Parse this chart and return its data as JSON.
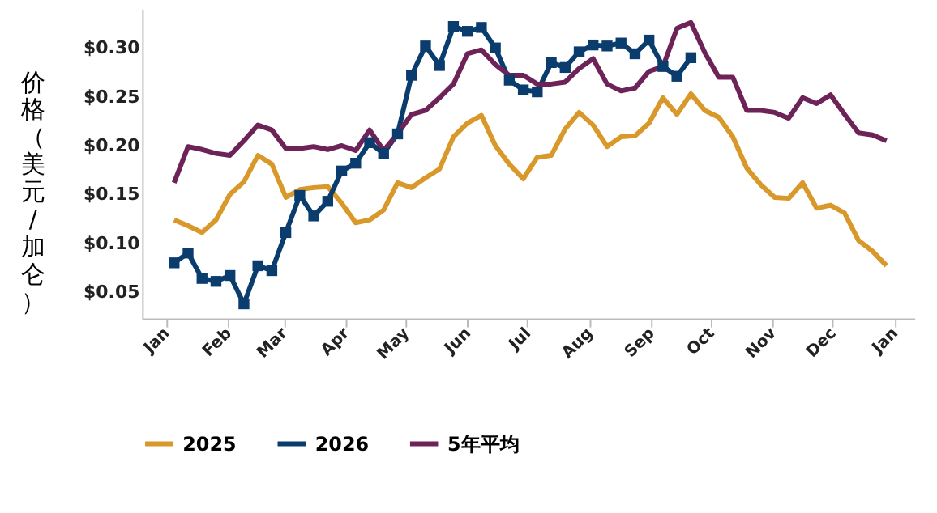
{
  "chart_data": {
    "type": "line",
    "ylabel": "价格（美元/加仑）",
    "legend": "bottom",
    "grid": false,
    "x": [
      "2026-01-05",
      "2026-01-12",
      "2026-01-19",
      "2026-01-26",
      "2026-02-02",
      "2026-02-09",
      "2026-02-16",
      "2026-02-23",
      "2026-03-02",
      "2026-03-09",
      "2026-03-16",
      "2026-03-23",
      "2026-03-30",
      "2026-04-06",
      "2026-04-13",
      "2026-04-20",
      "2026-04-27",
      "2026-05-04",
      "2026-05-11",
      "2026-05-18",
      "2026-05-25",
      "2026-06-01",
      "2026-06-08",
      "2026-06-15",
      "2026-06-22",
      "2026-06-29",
      "2026-07-06",
      "2026-07-13",
      "2026-07-20",
      "2026-07-27",
      "2026-08-03",
      "2026-08-10",
      "2026-08-17",
      "2026-08-24",
      "2026-08-31",
      "2026-09-07",
      "2026-09-14",
      "2026-09-21",
      "2026-09-28",
      "2026-10-05",
      "2026-10-12",
      "2026-10-19",
      "2026-10-26",
      "2026-11-02",
      "2026-11-09",
      "2026-11-16",
      "2026-11-23",
      "2026-11-30",
      "2026-12-07",
      "2026-12-14",
      "2026-12-21",
      "2026-12-28"
    ],
    "xlim": [
      "2025-12-20",
      "2027-01-11"
    ],
    "xticks": [
      {
        "value": "2026-01-01",
        "label": "Jan"
      },
      {
        "value": "2026-02-01",
        "label": "Feb"
      },
      {
        "value": "2026-03-01",
        "label": "Mar"
      },
      {
        "value": "2026-04-01",
        "label": "Apr"
      },
      {
        "value": "2026-05-01",
        "label": "May"
      },
      {
        "value": "2026-06-01",
        "label": "Jun"
      },
      {
        "value": "2026-07-01",
        "label": "Jul"
      },
      {
        "value": "2026-08-01",
        "label": "Aug"
      },
      {
        "value": "2026-09-01",
        "label": "Sep"
      },
      {
        "value": "2026-10-01",
        "label": "Oct"
      },
      {
        "value": "2026-11-01",
        "label": "Nov"
      },
      {
        "value": "2026-12-01",
        "label": "Dec"
      },
      {
        "value": "2027-01-01",
        "label": "Jan"
      }
    ],
    "ylim": [
      0.023,
      0.34
    ],
    "yticks": [
      {
        "value": 0.05,
        "label": "$0.05"
      },
      {
        "value": 0.1,
        "label": "$0.10"
      },
      {
        "value": 0.15,
        "label": "$0.15"
      },
      {
        "value": 0.2,
        "label": "$0.20"
      },
      {
        "value": 0.25,
        "label": "$0.25"
      },
      {
        "value": 0.3,
        "label": "$0.30"
      }
    ],
    "series": [
      {
        "name": "2025",
        "color": "#d8982a",
        "marker": "none",
        "values": [
          0.124,
          0.118,
          0.111,
          0.124,
          0.15,
          0.163,
          0.19,
          0.181,
          0.147,
          0.155,
          0.157,
          0.158,
          0.141,
          0.121,
          0.124,
          0.134,
          0.162,
          0.157,
          0.167,
          0.176,
          0.209,
          0.223,
          0.231,
          0.2,
          0.181,
          0.166,
          0.188,
          0.19,
          0.217,
          0.234,
          0.221,
          0.199,
          0.209,
          0.21,
          0.223,
          0.249,
          0.232,
          0.253,
          0.236,
          0.229,
          0.209,
          0.177,
          0.16,
          0.147,
          0.146,
          0.162,
          0.136,
          0.139,
          0.131,
          0.103,
          0.092,
          0.077
        ]
      },
      {
        "name": "2026",
        "color": "#0a3d6e",
        "marker": "square",
        "values": [
          0.08,
          0.09,
          0.064,
          0.061,
          0.067,
          0.038,
          0.077,
          0.072,
          0.111,
          0.149,
          0.128,
          0.143,
          0.174,
          0.182,
          0.203,
          0.192,
          0.212,
          0.272,
          0.302,
          0.282,
          0.322,
          0.317,
          0.321,
          0.3,
          0.267,
          0.257,
          0.255,
          0.285,
          0.28,
          0.296,
          0.303,
          0.302,
          0.305,
          0.294,
          0.308,
          0.281,
          0.271,
          0.29,
          null,
          null,
          null,
          null,
          null,
          null,
          null,
          null,
          null,
          null,
          null,
          null,
          null,
          null
        ]
      },
      {
        "name": "5年平均",
        "color": "#6e2358",
        "marker": "none",
        "values": [
          0.162,
          0.199,
          0.196,
          0.192,
          0.19,
          0.205,
          0.221,
          0.216,
          0.197,
          0.197,
          0.199,
          0.196,
          0.2,
          0.195,
          0.216,
          0.195,
          0.212,
          0.232,
          0.236,
          0.249,
          0.263,
          0.294,
          0.298,
          0.283,
          0.272,
          0.272,
          0.263,
          0.263,
          0.265,
          0.279,
          0.289,
          0.263,
          0.256,
          0.259,
          0.276,
          0.281,
          0.32,
          0.326,
          0.295,
          0.27,
          0.27,
          0.236,
          0.236,
          0.234,
          0.228,
          0.249,
          0.243,
          0.252,
          0.232,
          0.213,
          0.211,
          0.205
        ]
      }
    ]
  }
}
